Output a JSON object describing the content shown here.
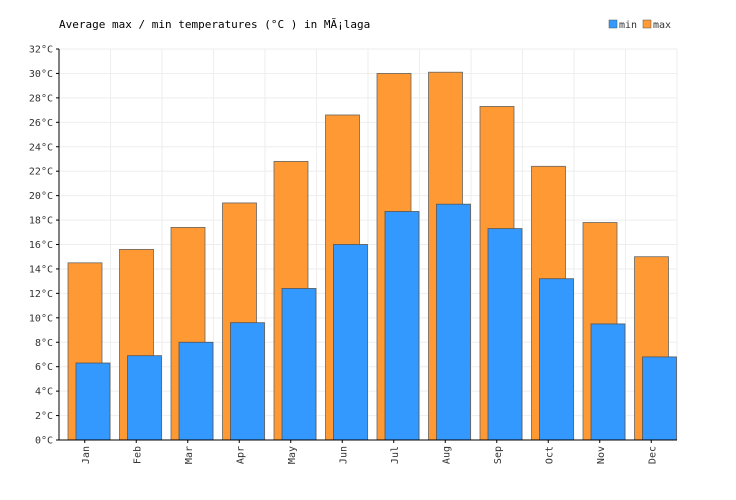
{
  "chart_data": {
    "type": "bar",
    "title": "Average max / min temperatures (°C ) in MÃ¡laga",
    "categories": [
      "Jan",
      "Feb",
      "Mar",
      "Apr",
      "May",
      "Jun",
      "Jul",
      "Aug",
      "Sep",
      "Oct",
      "Nov",
      "Dec"
    ],
    "series": [
      {
        "name": "max",
        "color": "#ff9933",
        "values": [
          14.5,
          15.6,
          17.4,
          19.4,
          22.8,
          26.6,
          30.0,
          30.1,
          27.3,
          22.4,
          17.8,
          15.0
        ]
      },
      {
        "name": "min",
        "color": "#3399ff",
        "values": [
          6.3,
          6.9,
          8.0,
          9.6,
          12.4,
          16.0,
          18.7,
          19.3,
          17.3,
          13.2,
          9.5,
          6.8
        ]
      }
    ],
    "y_ticks": [
      "0°C",
      "2°C",
      "4°C",
      "6°C",
      "8°C",
      "10°C",
      "12°C",
      "14°C",
      "16°C",
      "18°C",
      "20°C",
      "22°C",
      "24°C",
      "26°C",
      "28°C",
      "30°C",
      "32°C"
    ],
    "ylim": [
      0,
      32
    ],
    "grid": true,
    "legend_position": "top-right"
  }
}
